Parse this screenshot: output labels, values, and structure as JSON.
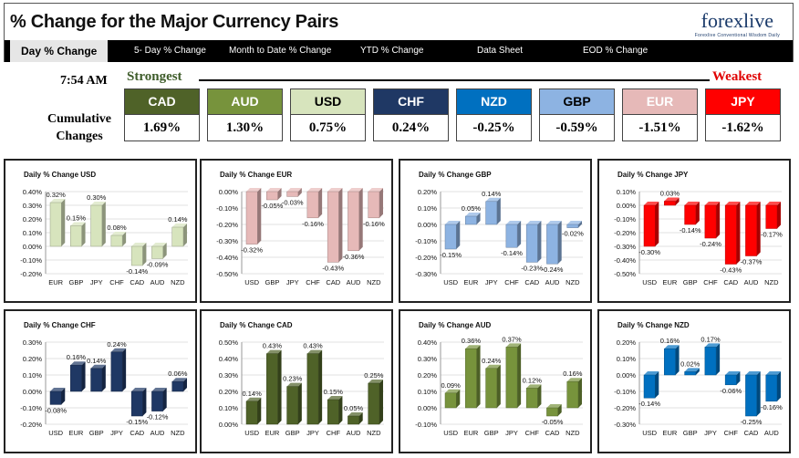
{
  "header": {
    "title": "% Change for the Major Currency Pairs",
    "logo_text": "forexlive",
    "logo_tagline": "Forexlive Conventional Wisdom Daily"
  },
  "tabs": [
    {
      "label": "Day % Change",
      "active": true
    },
    {
      "label": "5- Day % Change",
      "active": false
    },
    {
      "label": "Month to Date % Change",
      "active": false
    },
    {
      "label": "YTD % Change",
      "active": false
    },
    {
      "label": "Data Sheet",
      "active": false
    },
    {
      "label": "EOD % Change",
      "active": false
    }
  ],
  "summary": {
    "time": "7:54 AM",
    "strongest_label": "Strongest",
    "weakest_label": "Weakest",
    "cumulative_label": "Cumulative Changes",
    "currencies": [
      {
        "code": "CAD",
        "value": "1.69%",
        "color": "#4f6228",
        "text_color": "#ffffff"
      },
      {
        "code": "AUD",
        "value": "1.30%",
        "color": "#77933c",
        "text_color": "#ffffff"
      },
      {
        "code": "USD",
        "value": "0.75%",
        "color": "#d7e4bd",
        "text_color": "#000000"
      },
      {
        "code": "CHF",
        "value": "0.24%",
        "color": "#1f3864",
        "text_color": "#ffffff"
      },
      {
        "code": "NZD",
        "value": "-0.25%",
        "color": "#0070c0",
        "text_color": "#ffffff"
      },
      {
        "code": "GBP",
        "value": "-0.59%",
        "color": "#8db3e2",
        "text_color": "#000000"
      },
      {
        "code": "EUR",
        "value": "-1.51%",
        "color": "#e6b9b8",
        "text_color": "#ffffff"
      },
      {
        "code": "JPY",
        "value": "-1.62%",
        "color": "#ff0000",
        "text_color": "#ffffff"
      }
    ]
  },
  "chart_data": [
    {
      "type": "bar",
      "title": "Daily % Change USD",
      "categories": [
        "EUR",
        "GBP",
        "JPY",
        "CHF",
        "CAD",
        "AUD",
        "NZD"
      ],
      "values": [
        0.32,
        0.15,
        0.3,
        0.08,
        -0.14,
        -0.09,
        0.14
      ],
      "labels": [
        "0.32%",
        "0.15%",
        "0.30%",
        "0.08%",
        "-0.14%",
        "-0.09%",
        "0.14%"
      ],
      "ylim": [
        -0.2,
        0.4
      ],
      "yticks": [
        "0.40%",
        "0.30%",
        "0.20%",
        "0.10%",
        "0.00%",
        "-0.10%",
        "-0.20%"
      ],
      "color": "#d7e4bd"
    },
    {
      "type": "bar",
      "title": "Daily % Change EUR",
      "categories": [
        "USD",
        "GBP",
        "JPY",
        "CHF",
        "CAD",
        "AUD",
        "NZD"
      ],
      "values": [
        -0.32,
        -0.05,
        -0.03,
        -0.16,
        -0.43,
        -0.36,
        -0.16
      ],
      "labels": [
        "-0.32%",
        "-0.05%",
        "-0.03%",
        "-0.16%",
        "-0.43%",
        "-0.36%",
        "-0.16%"
      ],
      "ylim": [
        -0.5,
        0.0
      ],
      "yticks": [
        "0.00%",
        "-0.10%",
        "-0.20%",
        "-0.30%",
        "-0.40%",
        "-0.50%"
      ],
      "color": "#e6b9b8"
    },
    {
      "type": "bar",
      "title": "Daily % Change GBP",
      "categories": [
        "USD",
        "EUR",
        "JPY",
        "CHF",
        "CAD",
        "AUD",
        "NZD"
      ],
      "values": [
        -0.15,
        0.05,
        0.14,
        -0.14,
        -0.23,
        -0.24,
        -0.02
      ],
      "labels": [
        "-0.15%",
        "0.05%",
        "0.14%",
        "-0.14%",
        "-0.23%",
        "-0.24%",
        "-0.02%"
      ],
      "ylim": [
        -0.3,
        0.2
      ],
      "yticks": [
        "0.20%",
        "0.10%",
        "0.00%",
        "-0.10%",
        "-0.20%",
        "-0.30%"
      ],
      "color": "#8db3e2"
    },
    {
      "type": "bar",
      "title": "Daily % Change JPY",
      "categories": [
        "USD",
        "EUR",
        "GBP",
        "CHF",
        "CAD",
        "AUD",
        "NZD"
      ],
      "values": [
        -0.3,
        0.03,
        -0.14,
        -0.24,
        -0.43,
        -0.37,
        -0.17
      ],
      "labels": [
        "-0.30%",
        "0.03%",
        "-0.14%",
        "-0.24%",
        "-0.43%",
        "-0.37%",
        "-0.17%"
      ],
      "ylim": [
        -0.5,
        0.1
      ],
      "yticks": [
        "0.10%",
        "0.00%",
        "-0.10%",
        "-0.20%",
        "-0.30%",
        "-0.40%",
        "-0.50%"
      ],
      "color": "#ff0000"
    },
    {
      "type": "bar",
      "title": "Daily % Change CHF",
      "categories": [
        "USD",
        "EUR",
        "GBP",
        "JPY",
        "CAD",
        "AUD",
        "NZD"
      ],
      "values": [
        -0.08,
        0.16,
        0.14,
        0.24,
        -0.15,
        -0.12,
        0.06
      ],
      "labels": [
        "-0.08%",
        "0.16%",
        "0.14%",
        "0.24%",
        "-0.15%",
        "-0.12%",
        "0.06%"
      ],
      "ylim": [
        -0.2,
        0.3
      ],
      "yticks": [
        "0.30%",
        "0.20%",
        "0.10%",
        "0.00%",
        "-0.10%",
        "-0.20%"
      ],
      "color": "#1f3864"
    },
    {
      "type": "bar",
      "title": "Daily % Change CAD",
      "categories": [
        "USD",
        "EUR",
        "GBP",
        "JPY",
        "CHF",
        "AUD",
        "NZD"
      ],
      "values": [
        0.14,
        0.43,
        0.23,
        0.43,
        0.15,
        0.05,
        0.25
      ],
      "labels": [
        "0.14%",
        "0.43%",
        "0.23%",
        "0.43%",
        "0.15%",
        "0.05%",
        "0.25%"
      ],
      "ylim": [
        0.0,
        0.5
      ],
      "yticks": [
        "0.50%",
        "0.40%",
        "0.30%",
        "0.20%",
        "0.10%",
        "0.00%"
      ],
      "color": "#4f6228"
    },
    {
      "type": "bar",
      "title": "Daily % Change AUD",
      "categories": [
        "USD",
        "EUR",
        "GBP",
        "JPY",
        "CHF",
        "CAD",
        "NZD"
      ],
      "values": [
        0.09,
        0.36,
        0.24,
        0.37,
        0.12,
        -0.05,
        0.16
      ],
      "labels": [
        "0.09%",
        "0.36%",
        "0.24%",
        "0.37%",
        "0.12%",
        "-0.05%",
        "0.16%"
      ],
      "ylim": [
        -0.1,
        0.4
      ],
      "yticks": [
        "0.40%",
        "0.30%",
        "0.20%",
        "0.10%",
        "0.00%",
        "-0.10%"
      ],
      "color": "#77933c"
    },
    {
      "type": "bar",
      "title": "Daily % Change NZD",
      "categories": [
        "USD",
        "EUR",
        "GBP",
        "JPY",
        "CHF",
        "CAD",
        "AUD"
      ],
      "values": [
        -0.14,
        0.16,
        0.02,
        0.17,
        -0.06,
        -0.25,
        -0.16
      ],
      "labels": [
        "-0.14%",
        "0.16%",
        "0.02%",
        "0.17%",
        "-0.06%",
        "-0.25%",
        "-0.16%"
      ],
      "ylim": [
        -0.3,
        0.2
      ],
      "yticks": [
        "0.20%",
        "0.10%",
        "0.00%",
        "-0.10%",
        "-0.20%",
        "-0.30%"
      ],
      "color": "#0070c0"
    }
  ]
}
